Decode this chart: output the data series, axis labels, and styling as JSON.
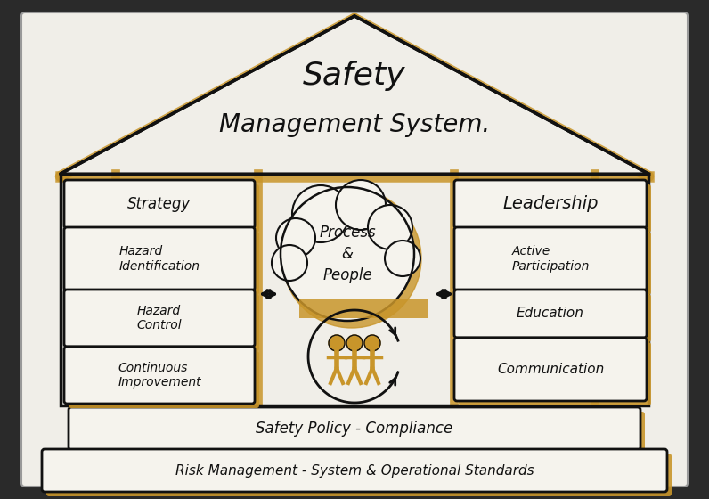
{
  "title_line1": "Safety",
  "title_line2": "Management System.",
  "paper_color": "#f0eee8",
  "outer_bg": "#2a2a2a",
  "gold_color": "#c8952a",
  "black_color": "#111111",
  "box_color": "#f5f3ed",
  "left_boxes": [
    "Strategy",
    "Hazard\nIdentification",
    "Hazard\nControl",
    "Continuous\nImprovement"
  ],
  "right_top_box": "Leadership",
  "right_boxes": [
    "Active\nParticipation",
    "Education",
    "Communication"
  ],
  "center_text": "Process\n&\nPeople",
  "bottom_bar1": "Safety Policy - Compliance",
  "bottom_bar2": "Risk Management - System & Operational Standards",
  "figw": 7.96,
  "figh": 5.6,
  "dpi": 100
}
